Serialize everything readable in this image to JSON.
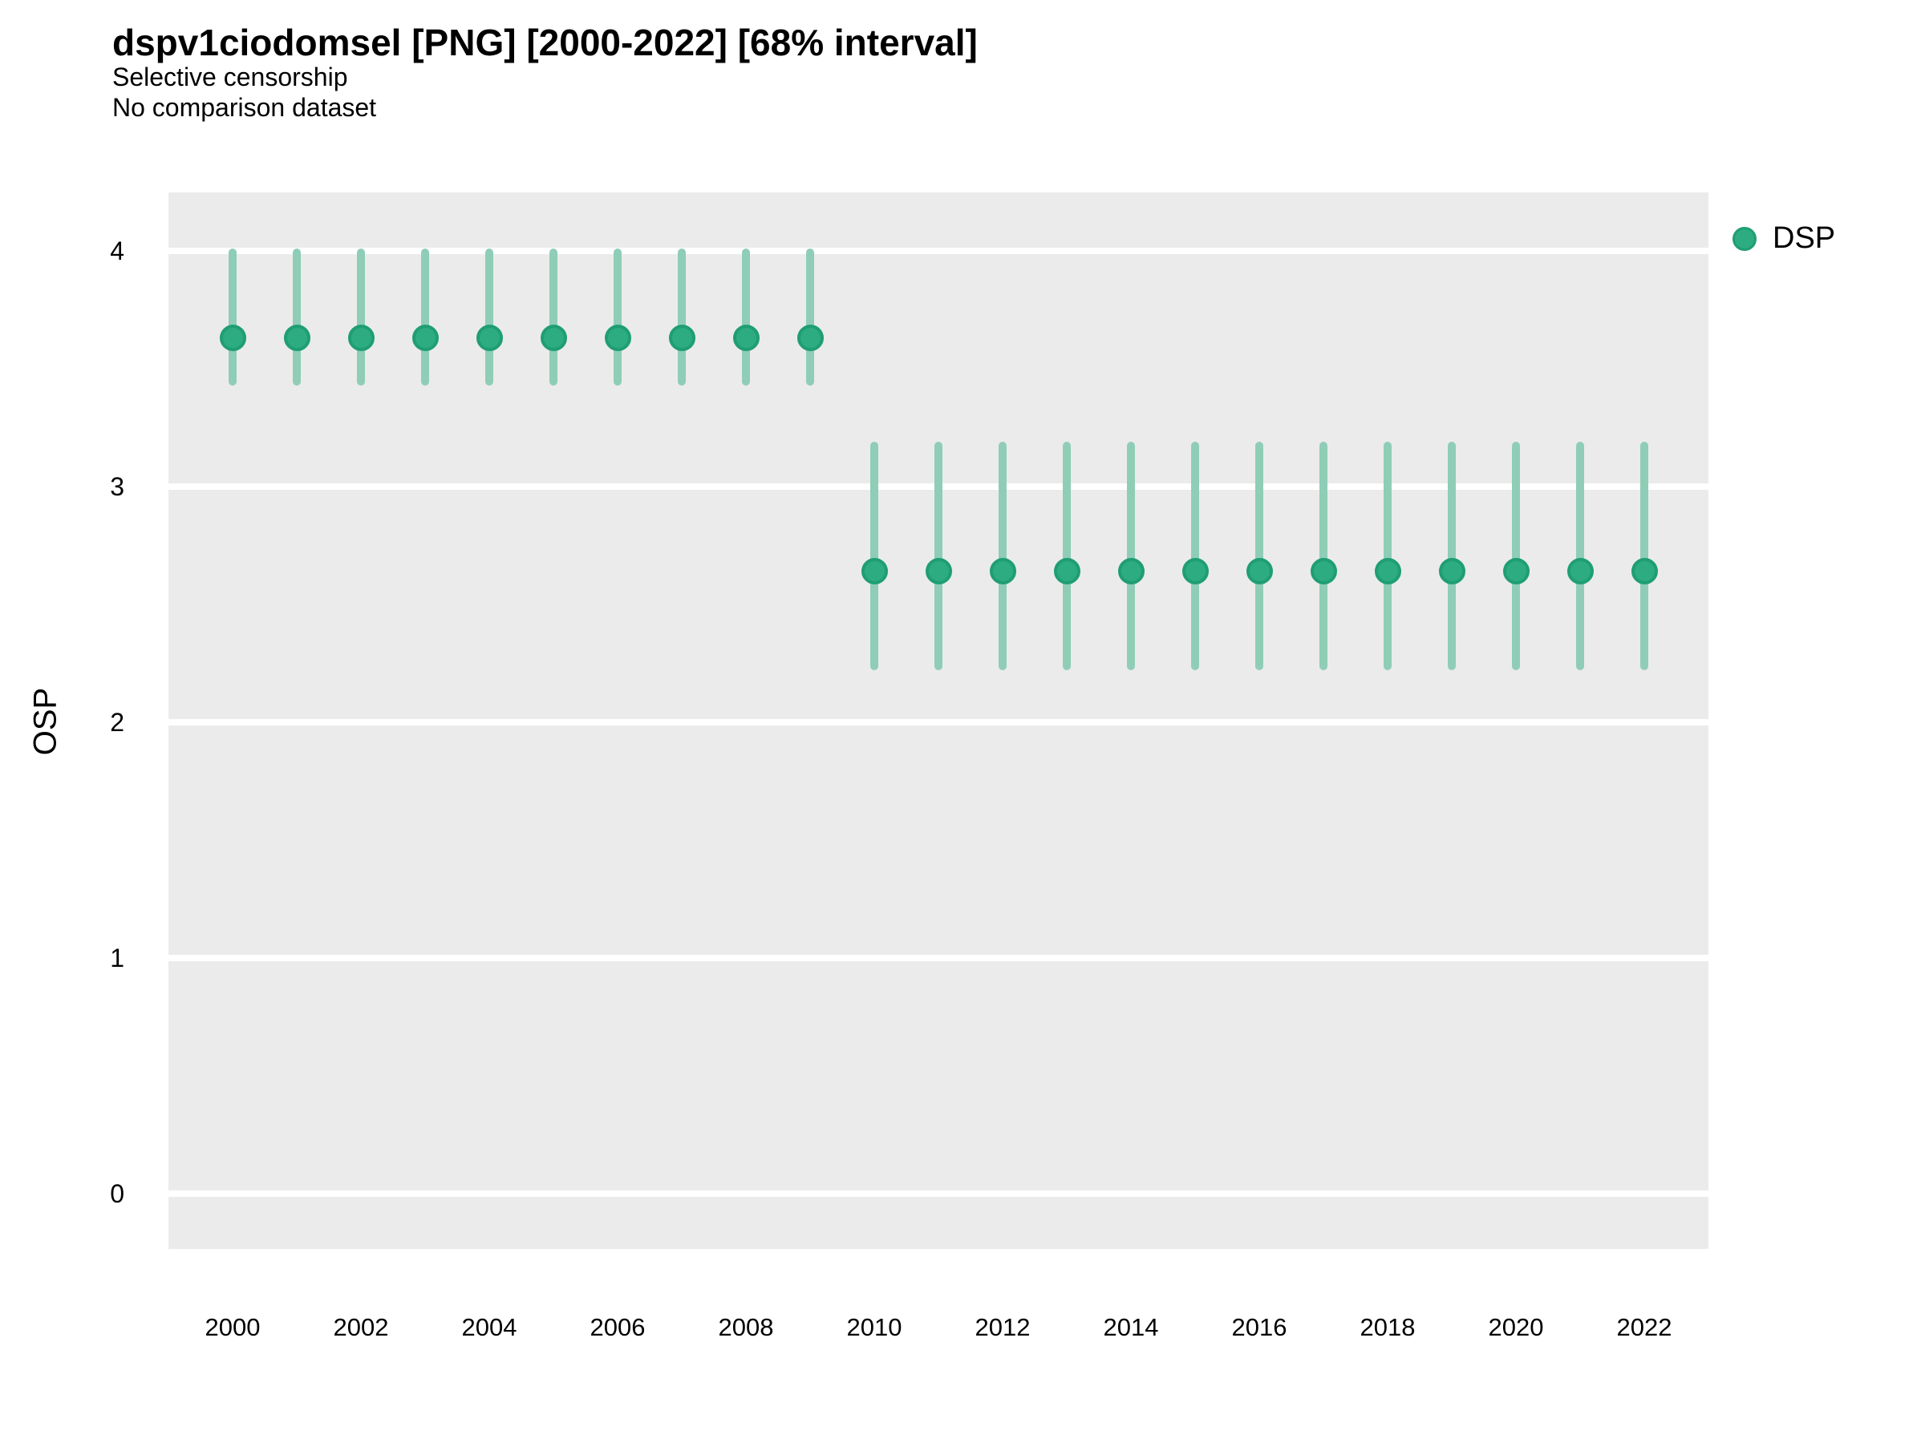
{
  "header": {
    "title": "dspv1ciodomsel [PNG] [2000-2022] [68% interval]",
    "subtitle1": "Selective censorship",
    "subtitle2": "No comparison dataset"
  },
  "legend": {
    "label": "DSP"
  },
  "colors": {
    "point_fill": "#2EAC81",
    "point_border": "#1F9E73",
    "interval_bar": "#8FCDB7",
    "panel_background": "#EBEBEB",
    "grid_line": "#FFFFFF",
    "text": "#000000"
  },
  "chart_data": {
    "type": "scatter",
    "subtype": "pointrange",
    "title": "dspv1ciodomsel [PNG] [2000-2022] [68% interval]",
    "subtitle": [
      "Selective censorship",
      "No comparison dataset"
    ],
    "xlabel": "",
    "ylabel": "OSP",
    "interval_level": "68%",
    "xlim": [
      1999,
      2023
    ],
    "ylim": [
      -0.23,
      4.25
    ],
    "x_ticks": [
      2000,
      2002,
      2004,
      2006,
      2008,
      2010,
      2012,
      2014,
      2016,
      2018,
      2020,
      2022
    ],
    "y_ticks": [
      4,
      3,
      2,
      1,
      0
    ],
    "grid": "horizontal major gridlines, white on gray panel",
    "legend_position": "right-top",
    "series": [
      {
        "name": "DSP",
        "years": [
          2000,
          2001,
          2002,
          2003,
          2004,
          2005,
          2006,
          2007,
          2008,
          2009,
          2010,
          2011,
          2012,
          2013,
          2014,
          2015,
          2016,
          2017,
          2018,
          2019,
          2020,
          2021,
          2022
        ],
        "estimates": [
          3.63,
          3.63,
          3.63,
          3.63,
          3.63,
          3.63,
          3.63,
          3.63,
          3.63,
          3.63,
          2.64,
          2.64,
          2.64,
          2.64,
          2.64,
          2.64,
          2.64,
          2.64,
          2.64,
          2.64,
          2.64,
          2.64,
          2.64
        ],
        "lower": [
          3.43,
          3.43,
          3.43,
          3.43,
          3.43,
          3.43,
          3.43,
          3.43,
          3.43,
          3.43,
          2.22,
          2.22,
          2.22,
          2.22,
          2.22,
          2.22,
          2.22,
          2.22,
          2.22,
          2.22,
          2.22,
          2.22,
          2.22
        ],
        "upper": [
          4.01,
          4.01,
          4.01,
          4.01,
          4.01,
          4.01,
          4.01,
          4.01,
          4.01,
          4.01,
          3.19,
          3.19,
          3.19,
          3.19,
          3.19,
          3.19,
          3.19,
          3.19,
          3.19,
          3.19,
          3.19,
          3.19,
          3.19
        ]
      }
    ]
  }
}
